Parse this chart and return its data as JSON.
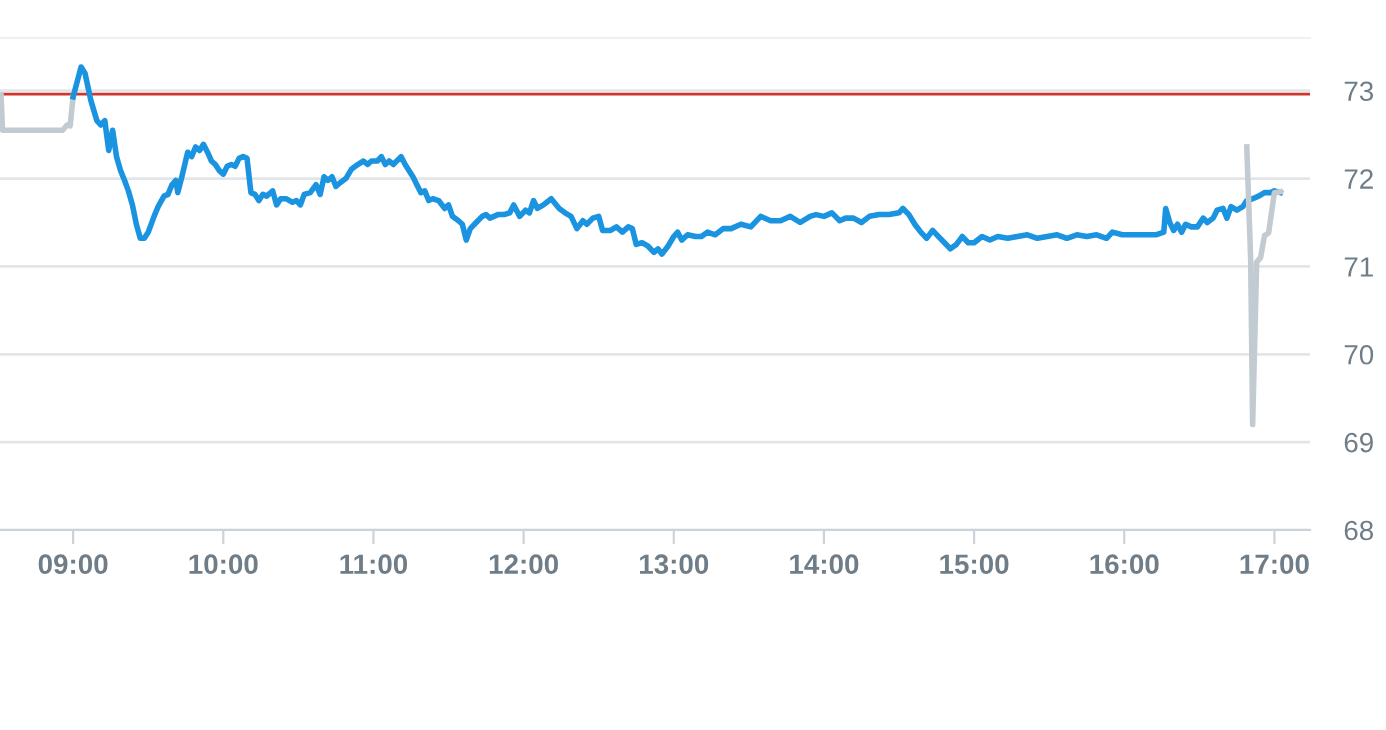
{
  "chart_data": {
    "type": "line",
    "series": [
      {
        "color": "#c3cbd2",
        "x": [
          8.52,
          8.53,
          8.93,
          8.96,
          8.98,
          9.0
        ],
        "values": [
          72.95,
          72.55,
          72.55,
          72.61,
          72.6,
          72.93
        ]
      },
      {
        "color": "#1a93e0",
        "x": [
          9.0,
          9.053,
          9.079,
          9.118,
          9.158,
          9.184,
          9.211,
          9.237,
          9.263,
          9.289,
          9.316,
          9.342,
          9.368,
          9.395,
          9.421,
          9.447,
          9.474,
          9.5,
          9.539,
          9.566,
          9.605,
          9.632,
          9.658,
          9.684,
          9.697,
          9.724,
          9.763,
          9.789,
          9.816,
          9.842,
          9.868,
          9.895,
          9.921,
          9.947,
          9.974,
          10.0,
          10.026,
          10.053,
          10.079,
          10.105,
          10.132,
          10.158,
          10.184,
          10.211,
          10.237,
          10.263,
          10.289,
          10.329,
          10.355,
          10.382,
          10.421,
          10.461,
          10.487,
          10.513,
          10.539,
          10.579,
          10.618,
          10.645,
          10.671,
          10.697,
          10.724,
          10.75,
          10.776,
          10.816,
          10.855,
          10.895,
          10.934,
          10.961,
          10.987,
          11.026,
          11.053,
          11.079,
          11.105,
          11.132,
          11.184,
          11.211,
          11.263,
          11.289,
          11.316,
          11.342,
          11.368,
          11.395,
          11.434,
          11.474,
          11.5,
          11.526,
          11.566,
          11.592,
          11.618,
          11.645,
          11.684,
          11.724,
          11.75,
          11.776,
          11.829,
          11.868,
          11.908,
          11.934,
          11.974,
          12.013,
          12.039,
          12.066,
          12.092,
          12.132,
          12.184,
          12.237,
          12.276,
          12.316,
          12.355,
          12.395,
          12.421,
          12.461,
          12.5,
          12.526,
          12.579,
          12.618,
          12.658,
          12.697,
          12.724,
          12.75,
          12.789,
          12.829,
          12.868,
          12.895,
          12.921,
          12.961,
          13.0,
          13.026,
          13.053,
          13.092,
          13.145,
          13.184,
          13.224,
          13.276,
          13.329,
          13.382,
          13.447,
          13.513,
          13.579,
          13.645,
          13.711,
          13.776,
          13.842,
          13.908,
          13.947,
          14.0,
          14.053,
          14.105,
          14.145,
          14.197,
          14.25,
          14.303,
          14.368,
          14.434,
          14.5,
          14.526,
          14.566,
          14.605,
          14.645,
          14.684,
          14.724,
          14.763,
          14.803,
          14.842,
          14.882,
          14.921,
          14.961,
          15.0,
          15.053,
          15.105,
          15.158,
          15.224,
          15.289,
          15.355,
          15.421,
          15.487,
          15.553,
          15.618,
          15.684,
          15.75,
          15.816,
          15.882,
          15.921,
          15.987,
          16.079,
          16.145,
          16.211,
          16.263,
          16.276,
          16.303,
          16.329,
          16.355,
          16.382,
          16.408,
          16.447,
          16.487,
          16.526,
          16.553,
          16.592,
          16.618,
          16.658,
          16.684,
          16.711,
          16.75,
          16.789,
          16.816,
          16.855,
          16.895,
          16.934,
          16.974,
          17.0,
          17.039
        ],
        "values": [
          72.93,
          73.27,
          73.2,
          72.89,
          72.66,
          72.61,
          72.66,
          72.32,
          72.55,
          72.25,
          72.09,
          71.98,
          71.86,
          71.7,
          71.48,
          71.32,
          71.32,
          71.39,
          71.57,
          71.68,
          71.8,
          71.82,
          71.93,
          71.98,
          71.84,
          72.02,
          72.3,
          72.25,
          72.36,
          72.32,
          72.39,
          72.3,
          72.2,
          72.16,
          72.09,
          72.05,
          72.14,
          72.16,
          72.14,
          72.23,
          72.25,
          72.23,
          71.84,
          71.82,
          71.75,
          71.82,
          71.8,
          71.86,
          71.7,
          71.77,
          71.77,
          71.73,
          71.75,
          71.7,
          71.82,
          71.84,
          71.93,
          71.82,
          72.02,
          71.98,
          72.02,
          71.91,
          71.95,
          72.0,
          72.11,
          72.16,
          72.2,
          72.16,
          72.2,
          72.2,
          72.25,
          72.16,
          72.2,
          72.16,
          72.25,
          72.16,
          72.02,
          71.93,
          71.84,
          71.86,
          71.75,
          71.77,
          71.75,
          71.66,
          71.7,
          71.57,
          71.52,
          71.48,
          71.3,
          71.43,
          71.5,
          71.57,
          71.59,
          71.55,
          71.59,
          71.59,
          71.61,
          71.7,
          71.57,
          71.64,
          71.61,
          71.75,
          71.66,
          71.7,
          71.77,
          71.66,
          71.61,
          71.57,
          71.43,
          71.52,
          71.48,
          71.55,
          71.57,
          71.41,
          71.41,
          71.45,
          71.39,
          71.45,
          71.43,
          71.25,
          71.27,
          71.23,
          71.16,
          71.2,
          71.14,
          71.23,
          71.34,
          71.39,
          71.3,
          71.36,
          71.34,
          71.34,
          71.39,
          71.36,
          71.43,
          71.43,
          71.48,
          71.45,
          71.57,
          71.52,
          71.52,
          71.57,
          71.5,
          71.57,
          71.59,
          71.57,
          71.61,
          71.52,
          71.55,
          71.55,
          71.5,
          71.57,
          71.59,
          71.59,
          71.61,
          71.66,
          71.59,
          71.48,
          71.39,
          71.32,
          71.41,
          71.34,
          71.27,
          71.2,
          71.25,
          71.34,
          71.27,
          71.27,
          71.34,
          71.3,
          71.34,
          71.32,
          71.34,
          71.36,
          71.32,
          71.34,
          71.36,
          71.32,
          71.36,
          71.34,
          71.36,
          71.32,
          71.39,
          71.36,
          71.36,
          71.36,
          71.36,
          71.39,
          71.66,
          71.5,
          71.41,
          71.48,
          71.39,
          71.48,
          71.45,
          71.45,
          71.55,
          71.5,
          71.55,
          71.64,
          71.66,
          71.55,
          71.68,
          71.64,
          71.68,
          71.75,
          71.77,
          71.8,
          71.84,
          71.84,
          71.86,
          71.84
        ]
      },
      {
        "color": "#c3cbd2",
        "x": [
          16.816,
          16.842,
          16.855,
          16.882,
          16.908,
          16.934,
          16.961,
          17.0,
          17.039
        ],
        "values": [
          72.36,
          71.07,
          69.2,
          71.05,
          71.1,
          71.35,
          71.38,
          71.84,
          71.85
        ]
      }
    ],
    "xlim": [
      8.513,
      17.237
    ],
    "xticks": [
      {
        "value": 9,
        "label": "09:00"
      },
      {
        "value": 10,
        "label": "10:00"
      },
      {
        "value": 11,
        "label": "11:00"
      },
      {
        "value": 12,
        "label": "12:00"
      },
      {
        "value": 13,
        "label": "13:00"
      },
      {
        "value": 14,
        "label": "14:00"
      },
      {
        "value": 15,
        "label": "15:00"
      },
      {
        "value": 16,
        "label": "16:00"
      },
      {
        "value": 17,
        "label": "17:00"
      }
    ],
    "ylim": [
      68,
      73.6
    ],
    "yticks": [
      68,
      69,
      70,
      71,
      72,
      73
    ],
    "ref_lines": [
      {
        "axis": "y",
        "value": 72.96,
        "color": "#d0342c"
      }
    ],
    "grid": "y",
    "legend": false,
    "marker": "none",
    "line_style": "solid"
  }
}
